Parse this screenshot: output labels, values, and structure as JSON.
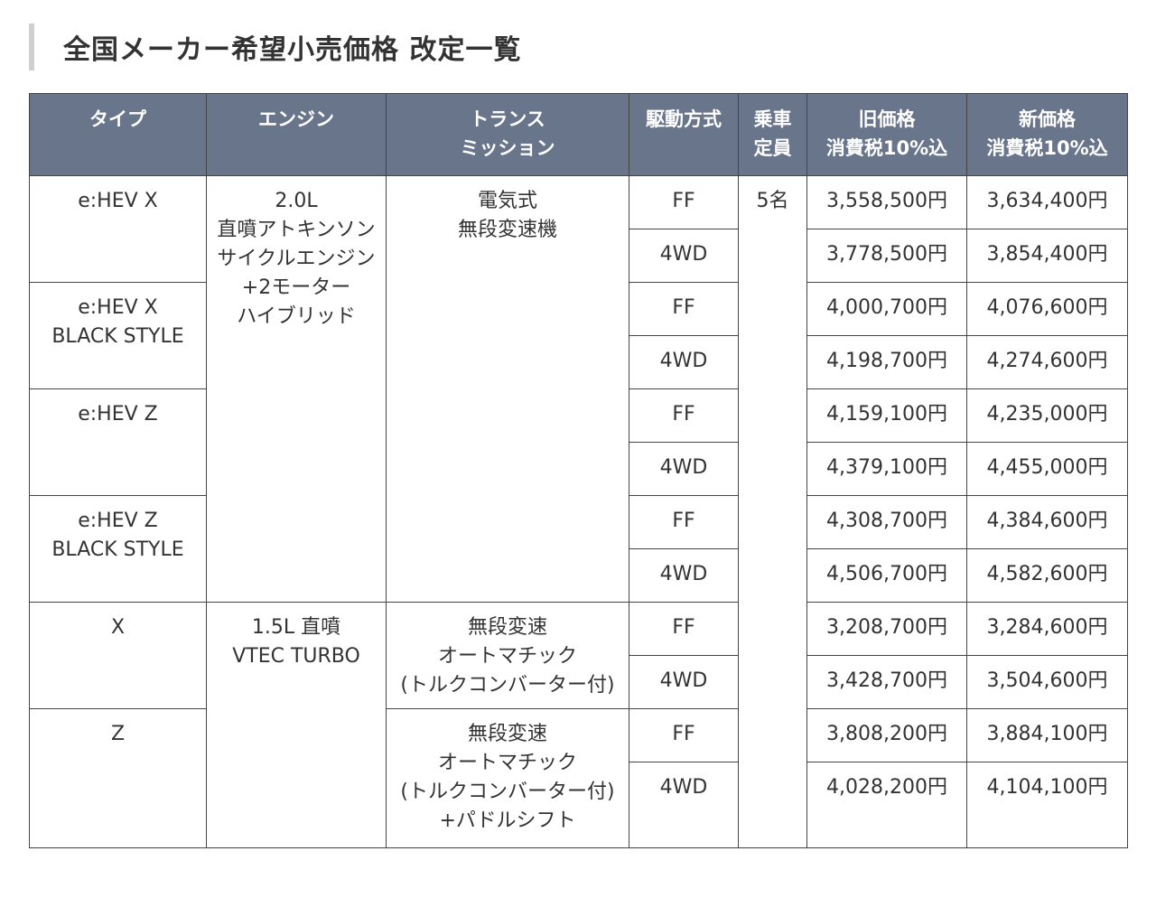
{
  "page_title": "全国メーカー希望小売価格 改定一覧",
  "headers": {
    "type": "タイプ",
    "engine": "エンジン",
    "transmission": [
      "トランス",
      "ミッション"
    ],
    "drive": "駆動方式",
    "capacity": [
      "乗車",
      "定員"
    ],
    "old_price": [
      "旧価格",
      "消費税10%込"
    ],
    "new_price": [
      "新価格",
      "消費税10%込"
    ]
  },
  "models": [
    [
      "e:HEV X"
    ],
    [
      "e:HEV X",
      "BLACK STYLE"
    ],
    [
      "e:HEV Z"
    ],
    [
      "e:HEV Z",
      "BLACK STYLE"
    ],
    [
      "X"
    ],
    [
      "Z"
    ]
  ],
  "engines": [
    [
      "2.0L",
      "直噴アトキンソン",
      "サイクルエンジン",
      "+2モーター",
      "ハイブリッド"
    ],
    [
      "1.5L 直噴",
      "VTEC TURBO"
    ]
  ],
  "transmissions": [
    [
      "電気式",
      "無段変速機"
    ],
    [
      "無段変速",
      "オートマチック",
      "(トルクコンバーター付)"
    ],
    [
      "無段変速",
      "オートマチック",
      "(トルクコンバーター付)",
      "+パドルシフト"
    ]
  ],
  "capacity": "5名",
  "rows": [
    {
      "drive": "FF",
      "old": "3,558,500円",
      "new": "3,634,400円"
    },
    {
      "drive": "4WD",
      "old": "3,778,500円",
      "new": "3,854,400円"
    },
    {
      "drive": "FF",
      "old": "4,000,700円",
      "new": "4,076,600円"
    },
    {
      "drive": "4WD",
      "old": "4,198,700円",
      "new": "4,274,600円"
    },
    {
      "drive": "FF",
      "old": "4,159,100円",
      "new": "4,235,000円"
    },
    {
      "drive": "4WD",
      "old": "4,379,100円",
      "new": "4,455,000円"
    },
    {
      "drive": "FF",
      "old": "4,308,700円",
      "new": "4,384,600円"
    },
    {
      "drive": "4WD",
      "old": "4,506,700円",
      "new": "4,582,600円"
    },
    {
      "drive": "FF",
      "old": "3,208,700円",
      "new": "3,284,600円"
    },
    {
      "drive": "4WD",
      "old": "3,428,700円",
      "new": "3,504,600円"
    },
    {
      "drive": "FF",
      "old": "3,808,200円",
      "new": "3,884,100円"
    },
    {
      "drive": "4WD",
      "old": "4,028,200円",
      "new": "4,104,100円"
    }
  ]
}
